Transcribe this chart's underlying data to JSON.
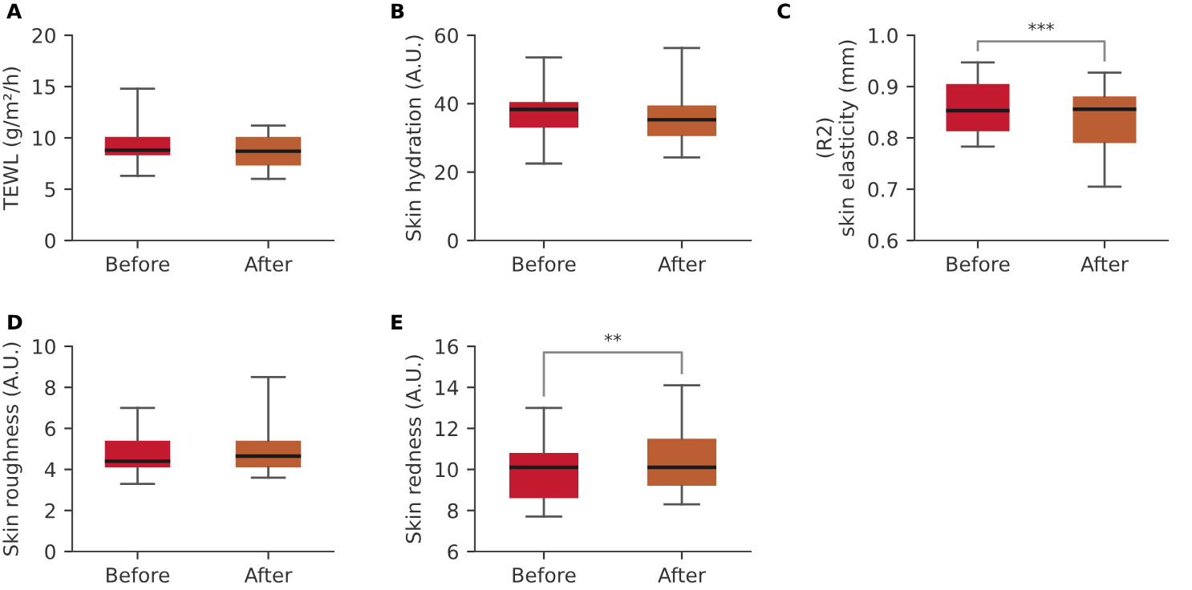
{
  "chart_data": [
    {
      "type": "box",
      "title": "A",
      "ylabel": "TEWL (g/m²/h)",
      "categories": [
        "Before",
        "After"
      ],
      "colors": [
        "#c41a30",
        "#bb5e34"
      ],
      "ylim": [
        0,
        20
      ],
      "yticks": [
        0,
        5,
        10,
        15,
        20
      ],
      "boxes": [
        {
          "low": 6.3,
          "q1": 8.3,
          "median": 8.8,
          "q3": 10.1,
          "high": 14.8
        },
        {
          "low": 6.0,
          "q1": 7.3,
          "median": 8.7,
          "q3": 10.1,
          "high": 11.2
        }
      ]
    },
    {
      "type": "box",
      "title": "B",
      "ylabel": "Skin hydration (A.U.)",
      "categories": [
        "Before",
        "After"
      ],
      "colors": [
        "#c41a30",
        "#bb5e34"
      ],
      "ylim": [
        0,
        60
      ],
      "yticks": [
        0,
        20,
        40,
        60
      ],
      "boxes": [
        {
          "low": 22.5,
          "q1": 33,
          "median": 38.3,
          "q3": 40.5,
          "high": 53.5
        },
        {
          "low": 24.3,
          "q1": 30.5,
          "median": 35.3,
          "q3": 39.5,
          "high": 56.3
        }
      ]
    },
    {
      "type": "box",
      "title": "C",
      "ylabel": "(R2)\nskin elasticity (mm)",
      "categories": [
        "Before",
        "After"
      ],
      "colors": [
        "#c41a30",
        "#bb5e34"
      ],
      "ylim": [
        0.6,
        1.0
      ],
      "yticks": [
        {
          "value": 0.6,
          "label": "0.6"
        },
        {
          "value": 0.7,
          "label": "0.7"
        },
        {
          "value": 0.8,
          "label": "0.8"
        },
        {
          "value": 0.9,
          "label": "0.9"
        },
        {
          "value": 1.0,
          "label": "1.0"
        }
      ],
      "annotations": [
        "***"
      ],
      "boxes": [
        {
          "low": 0.783,
          "q1": 0.813,
          "median": 0.853,
          "q3": 0.905,
          "high": 0.947
        },
        {
          "low": 0.705,
          "q1": 0.79,
          "median": 0.856,
          "q3": 0.881,
          "high": 0.927
        }
      ]
    },
    {
      "type": "box",
      "title": "D",
      "ylabel": "Skin roughness (A.U.)",
      "categories": [
        "Before",
        "After"
      ],
      "colors": [
        "#c41a30",
        "#bb5e34"
      ],
      "ylim": [
        0,
        10
      ],
      "yticks": [
        0,
        2,
        4,
        6,
        8,
        10
      ],
      "boxes": [
        {
          "low": 3.3,
          "q1": 4.1,
          "median": 4.4,
          "q3": 5.4,
          "high": 7.0
        },
        {
          "low": 3.6,
          "q1": 4.1,
          "median": 4.65,
          "q3": 5.4,
          "high": 8.5
        }
      ]
    },
    {
      "type": "box",
      "title": "E",
      "ylabel": "Skin redness (A.U.)",
      "categories": [
        "Before",
        "After"
      ],
      "colors": [
        "#c41a30",
        "#bb5e34"
      ],
      "ylim": [
        6,
        16
      ],
      "yticks": [
        6,
        8,
        10,
        12,
        14,
        16
      ],
      "annotations": [
        "**"
      ],
      "boxes": [
        {
          "low": 7.7,
          "q1": 8.6,
          "median": 10.1,
          "q3": 10.8,
          "high": 13.0
        },
        {
          "low": 8.3,
          "q1": 9.2,
          "median": 10.1,
          "q3": 11.5,
          "high": 14.1
        }
      ]
    }
  ]
}
